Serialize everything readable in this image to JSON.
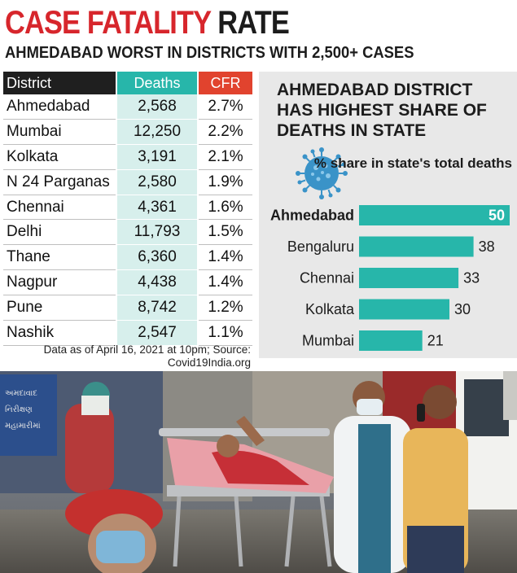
{
  "header": {
    "title_red": "CASE FATALITY",
    "title_dark": "RATE",
    "subtitle": "AHMEDABAD WORST IN DISTRICTS WITH 2,500+ CASES"
  },
  "table": {
    "headers": [
      "District",
      "Deaths",
      "CFR"
    ],
    "rows": [
      [
        "Ahmedabad",
        "2,568",
        "2.7%"
      ],
      [
        "Mumbai",
        "12,250",
        "2.2%"
      ],
      [
        "Kolkata",
        "3,191",
        "2.1%"
      ],
      [
        "N 24 Parganas",
        "2,580",
        "1.9%"
      ],
      [
        "Chennai",
        "4,361",
        "1.6%"
      ],
      [
        "Delhi",
        "11,793",
        "1.5%"
      ],
      [
        "Thane",
        "6,360",
        "1.4%"
      ],
      [
        "Nagpur",
        "4,438",
        "1.4%"
      ],
      [
        "Pune",
        "8,742",
        "1.2%"
      ],
      [
        "Nashik",
        "2,547",
        "1.1%"
      ]
    ],
    "note": "Data as of April 16, 2021 at 10pm; Source: Covid19India.org"
  },
  "chart_data": [
    {
      "type": "table",
      "columns": [
        "District",
        "Deaths",
        "CFR"
      ],
      "rows": [
        [
          "Ahmedabad",
          2568,
          "2.7%"
        ],
        [
          "Mumbai",
          12250,
          "2.2%"
        ],
        [
          "Kolkata",
          3191,
          "2.1%"
        ],
        [
          "N 24 Parganas",
          2580,
          "1.9%"
        ],
        [
          "Chennai",
          4361,
          "1.6%"
        ],
        [
          "Delhi",
          11793,
          "1.5%"
        ],
        [
          "Thane",
          6360,
          "1.4%"
        ],
        [
          "Nagpur",
          4438,
          "1.4%"
        ],
        [
          "Pune",
          8742,
          "1.2%"
        ],
        [
          "Nashik",
          2547,
          "1.1%"
        ]
      ],
      "title": "CASE FATALITY RATE",
      "subtitle": "AHMEDABAD WORST IN DISTRICTS WITH 2,500+ CASES"
    },
    {
      "type": "bar",
      "orientation": "horizontal",
      "title": "AHMEDABAD DISTRICT HAS HIGHEST SHARE OF DEATHS IN STATE",
      "value_label": "% share in state's total deaths",
      "categories": [
        "Ahmedabad",
        "Bengaluru",
        "Chennai",
        "Kolkata",
        "Mumbai"
      ],
      "values": [
        50,
        38,
        33,
        30,
        21
      ],
      "xlim": [
        0,
        50
      ],
      "highlight": "Ahmedabad",
      "bar_color": "#27b6aa",
      "grid": false
    }
  ],
  "colors": {
    "red": "#d7262c",
    "teal": "#27b6aa",
    "cfr_header": "#e1432e",
    "panel_bg": "#e8e8e8"
  },
  "photo": {
    "sign_text": [
      "અમદાવાદ",
      "નિરીક્ષણ",
      "મહામારીમાં"
    ]
  }
}
